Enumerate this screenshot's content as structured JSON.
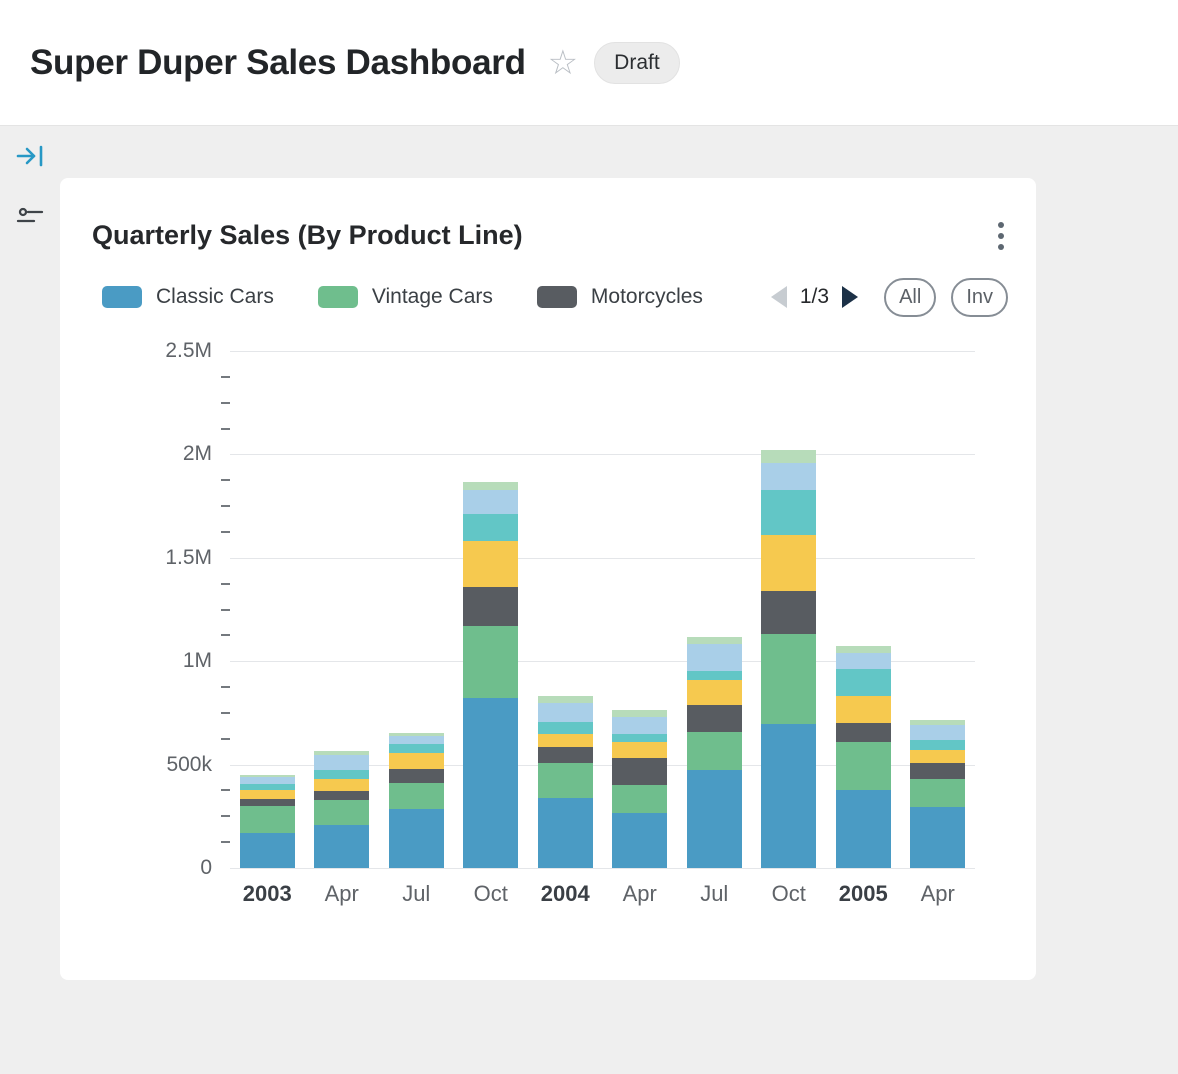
{
  "header": {
    "title": "Super Duper Sales Dashboard",
    "status_badge": "Draft"
  },
  "card": {
    "title": "Quarterly Sales (By Product Line)",
    "pagination": {
      "label": "1/3"
    },
    "filter_buttons": [
      {
        "label": "All"
      },
      {
        "label": "Inv"
      }
    ]
  },
  "chart_data": {
    "type": "bar",
    "stacked": true,
    "title": "Quarterly Sales (By Product Line)",
    "categories": [
      "2003",
      "Apr",
      "Jul",
      "Oct",
      "2004",
      "Apr",
      "Jul",
      "Oct",
      "2005",
      "Apr"
    ],
    "emphasized_categories": [
      "2003",
      "2004",
      "2005"
    ],
    "value_unit": "k",
    "ylim": [
      0,
      2500
    ],
    "y_ticks": [
      {
        "value": 0,
        "label": "0"
      },
      {
        "value": 500,
        "label": "500k"
      },
      {
        "value": 1000,
        "label": "1M"
      },
      {
        "value": 1500,
        "label": "1.5M"
      },
      {
        "value": 2000,
        "label": "2M"
      },
      {
        "value": 2500,
        "label": "2.5M"
      }
    ],
    "minor_tick_step": 125,
    "grid": true,
    "legend_position": "top",
    "series": [
      {
        "name": "Classic Cars",
        "color": "#4A9BC4",
        "in_legend": true,
        "values": [
          170,
          210,
          285,
          820,
          340,
          265,
          475,
          695,
          375,
          295
        ]
      },
      {
        "name": "Vintage Cars",
        "color": "#6FBE8D",
        "in_legend": true,
        "values": [
          130,
          120,
          125,
          350,
          170,
          135,
          185,
          435,
          235,
          135
        ]
      },
      {
        "name": "Motorcycles",
        "color": "#585C61",
        "in_legend": true,
        "values": [
          35,
          45,
          70,
          190,
          75,
          130,
          130,
          210,
          90,
          80
        ]
      },
      {
        "name": "(unlabeled yellow)",
        "color": "#F6C94F",
        "in_legend": false,
        "values": [
          40,
          55,
          75,
          220,
          65,
          80,
          120,
          270,
          130,
          60
        ]
      },
      {
        "name": "(unlabeled teal)",
        "color": "#62C6C6",
        "in_legend": false,
        "values": [
          30,
          45,
          45,
          130,
          55,
          40,
          45,
          220,
          130,
          50
        ]
      },
      {
        "name": "(unlabeled light blue)",
        "color": "#A9CFE8",
        "in_legend": false,
        "values": [
          35,
          70,
          40,
          120,
          95,
          80,
          130,
          130,
          80,
          70
        ]
      },
      {
        "name": "(unlabeled pale green)",
        "color": "#B7DCBA",
        "in_legend": false,
        "values": [
          10,
          20,
          15,
          37,
          30,
          35,
          30,
          60,
          35,
          25
        ]
      }
    ]
  }
}
